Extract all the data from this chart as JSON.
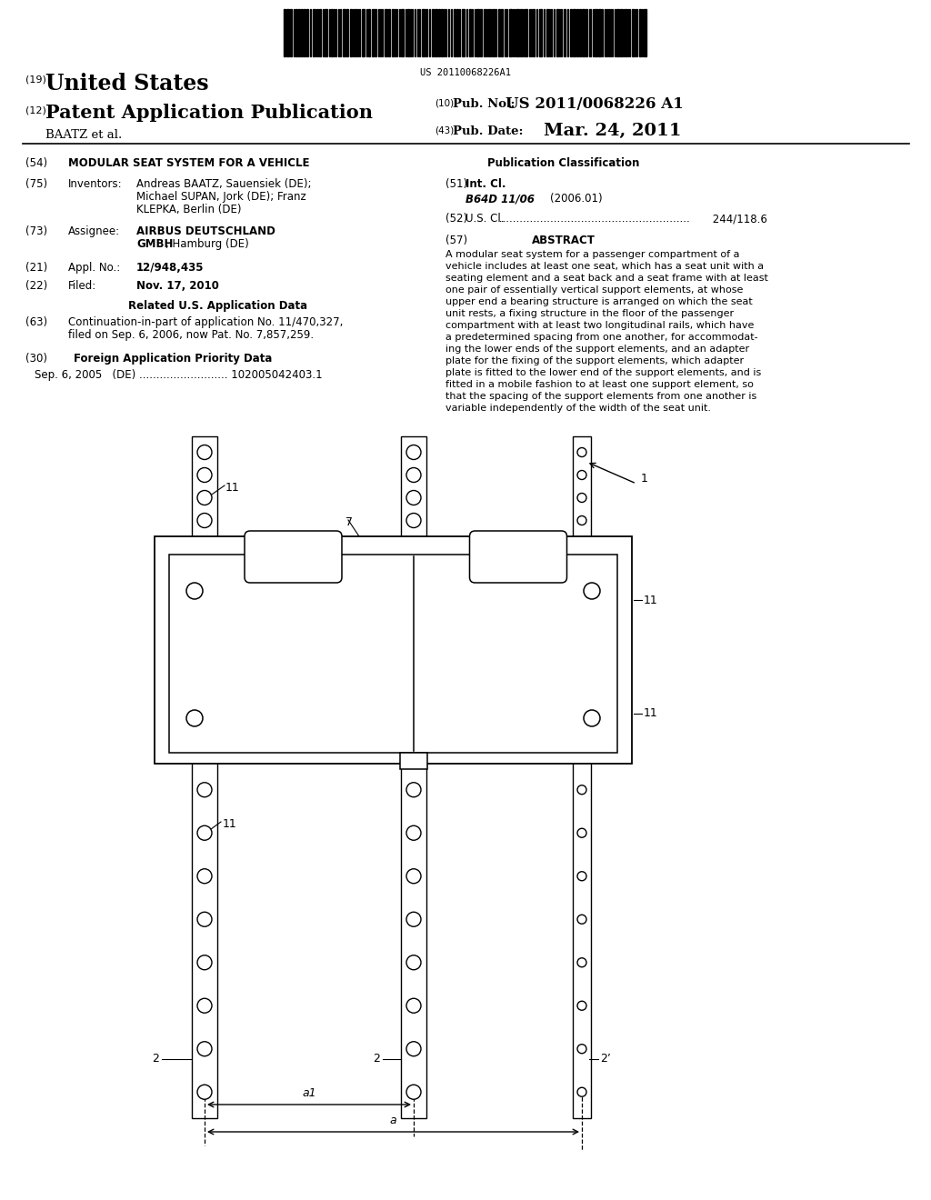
{
  "bg_color": "#ffffff",
  "barcode_text": "US 20110068226A1",
  "header": {
    "label19": "(19)",
    "united_states": "United States",
    "label12": "(12)",
    "patent_app": "Patent Application Publication",
    "baatz_et_al": "BAATZ et al.",
    "label10": "(10)",
    "pub_no_label": "Pub. No.:",
    "pub_no": "US 2011/0068226 A1",
    "label43": "(43)",
    "pub_date_label": "Pub. Date:",
    "pub_date": "Mar. 24, 2011"
  },
  "left_col": {
    "label54": "(54)",
    "title54": "MODULAR SEAT SYSTEM FOR A VEHICLE",
    "label75": "(75)",
    "inventors_label": "Inventors:",
    "inv1": "Andreas BAATZ, Sauensiek (DE);",
    "inv2": "Michael SUPAN, Jork (DE); Franz",
    "inv3": "KLEPKA, Berlin (DE)",
    "label73": "(73)",
    "assignee_label": "Assignee:",
    "assignee1_bold": "AIRBUS DEUTSCHLAND",
    "assignee2_bold": "GMBH",
    "assignee2_normal": ", Hamburg (DE)",
    "label21": "(21)",
    "appl_label": "Appl. No.:",
    "appl_no": "12/948,435",
    "label22": "(22)",
    "filed_label": "Filed:",
    "filed": "Nov. 17, 2010",
    "related_header": "Related U.S. Application Data",
    "label63": "(63)",
    "cont1": "Continuation-in-part of application No. 11/470,327,",
    "cont2": "filed on Sep. 6, 2006, now Pat. No. 7,857,259.",
    "label30": "(30)",
    "foreign_header": "Foreign Application Priority Data",
    "foreign_data": "Sep. 6, 2005   (DE) .......................... 102005042403.1"
  },
  "right_col": {
    "pub_class_header": "Publication Classification",
    "label51": "(51)",
    "int_cl_label": "Int. Cl.",
    "int_cl_italic": "B64D 11/06",
    "int_cl_date": "(2006.01)",
    "label52": "(52)",
    "us_cl_label": "U.S. Cl.",
    "us_cl_dots": " ........................................................",
    "us_cl_num": " 244/118.6",
    "label57": "(57)",
    "abstract_header": "ABSTRACT",
    "abstract_lines": [
      "A modular seat system for a passenger compartment of a",
      "vehicle includes at least one seat, which has a seat unit with a",
      "seating element and a seat back and a seat frame with at least",
      "one pair of essentially vertical support elements, at whose",
      "upper end a bearing structure is arranged on which the seat",
      "unit rests, a fixing structure in the floor of the passenger",
      "compartment with at least two longitudinal rails, which have",
      "a predetermined spacing from one another, for accommodat-",
      "ing the lower ends of the support elements, and an adapter",
      "plate for the fixing of the support elements, which adapter",
      "plate is fitted to the lower end of the support elements, and is",
      "fitted in a mobile fashion to at least one support element, so",
      "that the spacing of the support elements from one another is",
      "variable independently of the width of the seat unit."
    ]
  },
  "diagram_labels": {
    "ref1": "1",
    "ref2_left": "2",
    "ref2_mid": "2",
    "ref2_prime": "2’",
    "ref7": "7",
    "ref11_tl": "11",
    "ref11_tr": "11",
    "ref11_bl": "11",
    "ref11_mr": "11",
    "dim_a1": "a1",
    "dim_a": "a"
  }
}
